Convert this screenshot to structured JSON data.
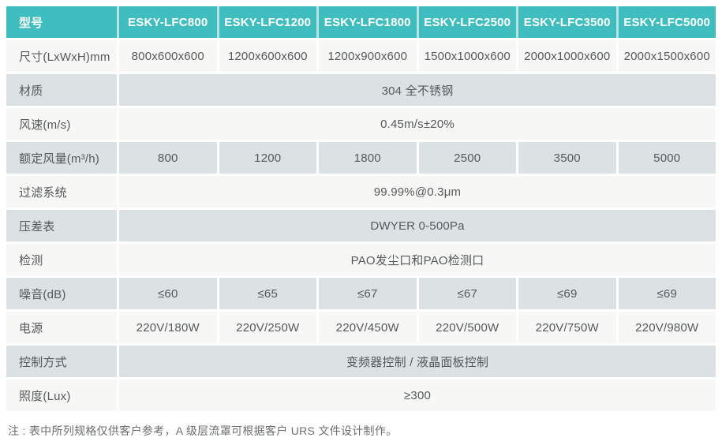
{
  "table": {
    "header": {
      "model_label": "型号",
      "columns": [
        "ESKY-LFC800",
        "ESKY-LFC1200",
        "ESKY-LFC1800",
        "ESKY-LFC2500",
        "ESKY-LFC3500",
        "ESKY-LFC5000"
      ]
    },
    "rows": [
      {
        "label": "尺寸(LxWxH)mm",
        "values": [
          "800x600x600",
          "1200x600x600",
          "1200x900x600",
          "1500x1000x600",
          "2000x1000x600",
          "2000x1500x600"
        ]
      },
      {
        "label": "材质",
        "value": "304 全不锈钢"
      },
      {
        "label": "风速(m/s)",
        "value": "0.45m/s±20%"
      },
      {
        "label": "额定风量(m³/h)",
        "values": [
          "800",
          "1200",
          "1800",
          "2500",
          "3500",
          "5000"
        ]
      },
      {
        "label": "过滤系统",
        "value": "99.99%@0.3μm"
      },
      {
        "label": "压差表",
        "value": "DWYER 0-500Pa"
      },
      {
        "label": "检测",
        "value": "PAO发尘口和PAO检测口"
      },
      {
        "label": "噪音(dB)",
        "values": [
          "≤60",
          "≤65",
          "≤67",
          "≤67",
          "≤69",
          "≤69"
        ]
      },
      {
        "label": "电源",
        "values": [
          "220V/180W",
          "220V/250W",
          "220V/450W",
          "220V/500W",
          "220V/750W",
          "220V/980W"
        ]
      },
      {
        "label": "控制方式",
        "value": "变频器控制 / 液晶面板控制"
      },
      {
        "label": "照度(Lux)",
        "value": "≥300"
      }
    ],
    "note": "注 : 表中所列规格仅供客户参考，A 级层流罩可根据客户 URS 文件设计制作。"
  },
  "colors": {
    "header_bg": "#40bdbe",
    "header_gap": "#b7e3e5",
    "row_gray": "#dce1e3",
    "row_white": "#f7f7f6",
    "text": "#54595d"
  }
}
